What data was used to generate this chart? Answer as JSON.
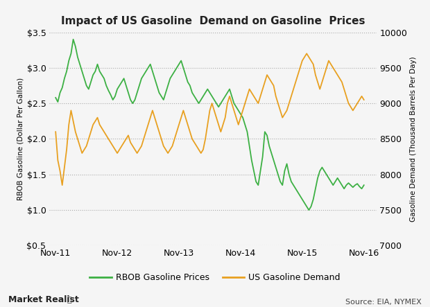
{
  "title": "Impact of US Gasoline  Demand on Gasoline  Prices",
  "ylabel_left": "RBOB Gasoline (Dollar Per Gallon)",
  "ylabel_right": "Gasoline Demand (Thousand Barrels Per Day)",
  "ylim_left": [
    0.5,
    3.5
  ],
  "ylim_right": [
    7000,
    10000
  ],
  "yticks_left": [
    0.5,
    1.0,
    1.5,
    2.0,
    2.5,
    3.0,
    3.5
  ],
  "yticks_right": [
    7000,
    7500,
    8000,
    8500,
    9000,
    9500,
    10000
  ],
  "xtick_labels": [
    "Nov-11",
    "Nov-12",
    "Nov-13",
    "Nov-14",
    "Nov-15",
    "Nov-16"
  ],
  "color_green": "#3cb043",
  "color_orange": "#e8a020",
  "legend_labels": [
    "RBOB Gasoline Prices",
    "US Gasoline Demand"
  ],
  "watermark": "Market Realist",
  "source": "Source: EIA, NYMEX",
  "background_color": "#f5f5f5",
  "grid_color": "#aaaaaa",
  "green_prices": [
    2.58,
    2.52,
    2.65,
    2.72,
    2.85,
    2.95,
    3.1,
    3.2,
    3.4,
    3.3,
    3.15,
    3.05,
    2.95,
    2.85,
    2.75,
    2.7,
    2.8,
    2.9,
    2.95,
    3.05,
    2.95,
    2.9,
    2.85,
    2.75,
    2.68,
    2.62,
    2.55,
    2.6,
    2.7,
    2.75,
    2.8,
    2.85,
    2.75,
    2.65,
    2.55,
    2.5,
    2.55,
    2.65,
    2.75,
    2.85,
    2.9,
    2.95,
    3.0,
    3.05,
    2.95,
    2.85,
    2.75,
    2.65,
    2.6,
    2.55,
    2.65,
    2.75,
    2.85,
    2.9,
    2.95,
    3.0,
    3.05,
    3.1,
    3.0,
    2.9,
    2.8,
    2.75,
    2.65,
    2.6,
    2.55,
    2.5,
    2.55,
    2.6,
    2.65,
    2.7,
    2.65,
    2.6,
    2.55,
    2.5,
    2.45,
    2.5,
    2.55,
    2.6,
    2.65,
    2.7,
    2.6,
    2.5,
    2.45,
    2.4,
    2.35,
    2.3,
    2.2,
    2.1,
    1.9,
    1.7,
    1.55,
    1.4,
    1.35,
    1.55,
    1.75,
    2.1,
    2.05,
    1.9,
    1.8,
    1.7,
    1.6,
    1.5,
    1.4,
    1.35,
    1.55,
    1.65,
    1.5,
    1.4,
    1.35,
    1.3,
    1.25,
    1.2,
    1.15,
    1.1,
    1.05,
    1.0,
    1.05,
    1.15,
    1.3,
    1.45,
    1.55,
    1.6,
    1.55,
    1.5,
    1.45,
    1.4,
    1.35,
    1.4,
    1.45,
    1.4,
    1.35,
    1.3,
    1.35,
    1.38,
    1.35,
    1.32,
    1.35,
    1.37,
    1.33,
    1.3,
    1.35
  ],
  "orange_demand": [
    8600,
    8200,
    8050,
    7850,
    8100,
    8350,
    8700,
    8900,
    8750,
    8600,
    8500,
    8400,
    8300,
    8350,
    8400,
    8500,
    8600,
    8700,
    8750,
    8800,
    8700,
    8650,
    8600,
    8550,
    8500,
    8450,
    8400,
    8350,
    8300,
    8350,
    8400,
    8450,
    8500,
    8550,
    8450,
    8400,
    8350,
    8300,
    8350,
    8400,
    8500,
    8600,
    8700,
    8800,
    8900,
    8800,
    8700,
    8600,
    8500,
    8400,
    8350,
    8300,
    8350,
    8400,
    8500,
    8600,
    8700,
    8800,
    8900,
    8800,
    8700,
    8600,
    8500,
    8450,
    8400,
    8350,
    8300,
    8350,
    8500,
    8700,
    8900,
    9000,
    8900,
    8800,
    8700,
    8600,
    8700,
    8800,
    9000,
    9100,
    9000,
    8900,
    8800,
    8700,
    8800,
    8900,
    9000,
    9100,
    9200,
    9150,
    9100,
    9050,
    9000,
    9100,
    9200,
    9300,
    9400,
    9350,
    9300,
    9250,
    9100,
    9000,
    8900,
    8800,
    8850,
    8900,
    9000,
    9100,
    9200,
    9300,
    9400,
    9500,
    9600,
    9650,
    9700,
    9650,
    9600,
    9550,
    9400,
    9300,
    9200,
    9300,
    9400,
    9500,
    9600,
    9550,
    9500,
    9450,
    9400,
    9350,
    9300,
    9200,
    9100,
    9000,
    8950,
    8900,
    8950,
    9000,
    9050,
    9100,
    9050
  ]
}
